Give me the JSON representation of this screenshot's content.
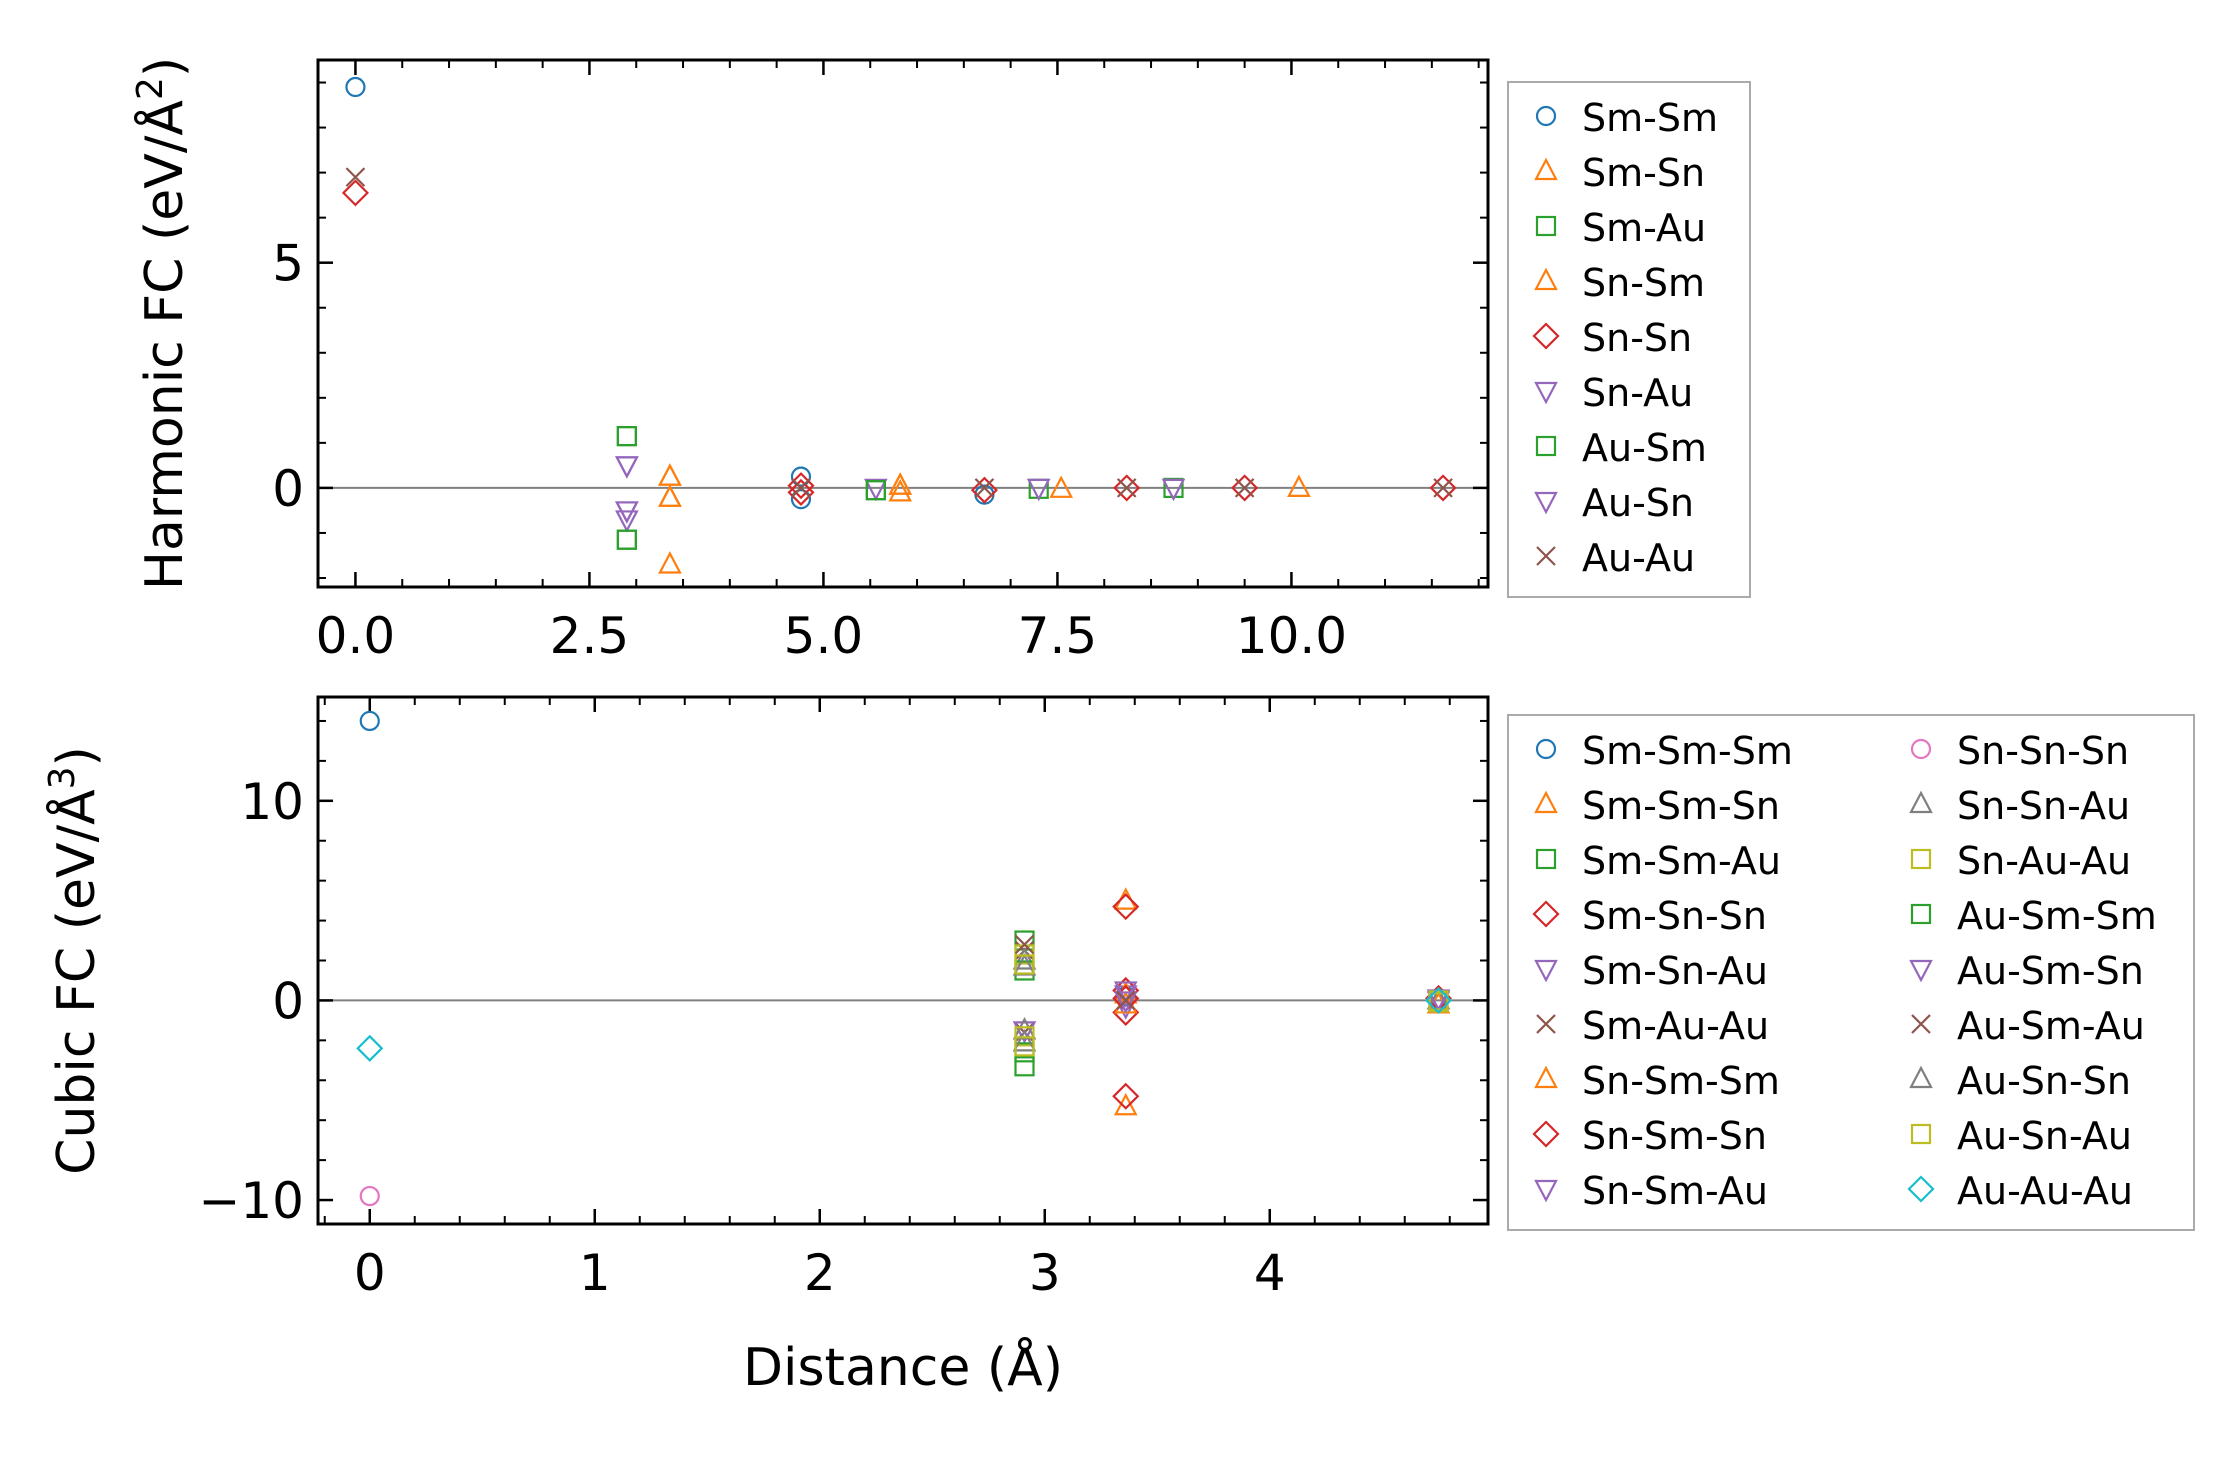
{
  "chart_data": [
    {
      "type": "scatter",
      "panel": "top",
      "xlabel": "",
      "ylabel": "Harmonic FC (eV/Å²)",
      "ylabel_main": "Harmonic FC (eV/Å",
      "ylabel_sup": "2",
      "ylabel_close": ")",
      "xlim": [
        -0.4,
        12.1
      ],
      "ylim": [
        -2.2,
        9.5
      ],
      "xticks": [
        0.0,
        2.5,
        5.0,
        7.5,
        10.0
      ],
      "xtick_labels": [
        "0.0",
        "2.5",
        "5.0",
        "7.5",
        "10.0"
      ],
      "yticks": [
        0,
        5
      ],
      "ytick_labels": [
        "0",
        "5"
      ],
      "zero_line": true,
      "legend": "right",
      "legend_columns": 1,
      "series": [
        {
          "name": "Sm-Sm",
          "marker": "circle",
          "color": "#1f77b4",
          "points": [
            [
              0.0,
              8.9
            ],
            [
              4.76,
              0.25
            ],
            [
              4.76,
              -0.25
            ],
            [
              6.72,
              -0.15
            ]
          ]
        },
        {
          "name": "Sm-Sn",
          "marker": "triangle-up",
          "color": "#ff7f0e",
          "points": [
            [
              3.36,
              0.25
            ],
            [
              3.36,
              -0.22
            ],
            [
              3.36,
              -1.7
            ],
            [
              5.82,
              0.05
            ],
            [
              5.82,
              -0.1
            ],
            [
              7.54,
              -0.02
            ],
            [
              10.08,
              0.0
            ]
          ]
        },
        {
          "name": "Sm-Au",
          "marker": "square",
          "color": "#2ca02c",
          "points": [
            [
              2.9,
              1.15
            ],
            [
              2.9,
              -1.15
            ],
            [
              5.56,
              -0.05
            ],
            [
              7.3,
              -0.02
            ],
            [
              8.74,
              0.0
            ]
          ]
        },
        {
          "name": "Sn-Sm",
          "marker": "triangle-up",
          "color": "#ff7f0e",
          "points": [
            [
              3.36,
              0.25
            ],
            [
              3.36,
              -0.22
            ],
            [
              5.82,
              0.05
            ]
          ]
        },
        {
          "name": "Sn-Sn",
          "marker": "diamond",
          "color": "#d62728",
          "points": [
            [
              0.0,
              6.55
            ],
            [
              4.76,
              0.05
            ],
            [
              4.76,
              -0.1
            ],
            [
              6.72,
              -0.05
            ],
            [
              8.24,
              0.0
            ],
            [
              9.5,
              0.0
            ],
            [
              11.62,
              0.0
            ]
          ]
        },
        {
          "name": "Sn-Au",
          "marker": "triangle-down",
          "color": "#9467bd",
          "points": [
            [
              2.9,
              0.5
            ],
            [
              2.9,
              -0.5
            ],
            [
              2.9,
              -0.7
            ],
            [
              5.56,
              0.0
            ],
            [
              7.3,
              0.0
            ],
            [
              8.74,
              0.0
            ]
          ]
        },
        {
          "name": "Au-Sm",
          "marker": "square",
          "color": "#2ca02c",
          "points": [
            [
              2.9,
              1.15
            ],
            [
              2.9,
              -1.15
            ],
            [
              5.56,
              -0.05
            ]
          ]
        },
        {
          "name": "Au-Sn",
          "marker": "triangle-down",
          "color": "#9467bd",
          "points": [
            [
              2.9,
              0.5
            ],
            [
              2.9,
              -0.5
            ]
          ]
        },
        {
          "name": "Au-Au",
          "marker": "x",
          "color": "#8c564b",
          "points": [
            [
              0.0,
              6.9
            ],
            [
              4.76,
              0.0
            ],
            [
              6.72,
              0.0
            ],
            [
              8.24,
              0.0
            ],
            [
              9.5,
              0.0
            ],
            [
              11.62,
              0.0
            ]
          ]
        }
      ]
    },
    {
      "type": "scatter",
      "panel": "bottom",
      "xlabel": "Distance (Å)",
      "ylabel": "Cubic FC (eV/Å³)",
      "ylabel_main": "Cubic FC (eV/Å",
      "ylabel_sup": "3",
      "ylabel_close": ")",
      "xlim": [
        -0.23,
        4.97
      ],
      "ylim": [
        -11.2,
        15.2
      ],
      "xticks": [
        0,
        1,
        2,
        3,
        4
      ],
      "xtick_labels": [
        "0",
        "1",
        "2",
        "3",
        "4"
      ],
      "yticks": [
        -10,
        0,
        10
      ],
      "ytick_labels": [
        "−10",
        "0",
        "10"
      ],
      "zero_line": true,
      "legend": "right",
      "legend_columns": 2,
      "series": [
        {
          "name": "Sm-Sm-Sm",
          "marker": "circle",
          "color": "#1f77b4",
          "points": [
            [
              0.0,
              14.0
            ],
            [
              3.36,
              0.2
            ]
          ]
        },
        {
          "name": "Sm-Sm-Sn",
          "marker": "triangle-up",
          "color": "#ff7f0e",
          "points": [
            [
              3.36,
              5.0
            ],
            [
              3.36,
              -5.3
            ],
            [
              4.75,
              -0.2
            ]
          ]
        },
        {
          "name": "Sm-Sm-Au",
          "marker": "square",
          "color": "#2ca02c",
          "points": [
            [
              2.91,
              3.0
            ],
            [
              2.91,
              -3.3
            ]
          ]
        },
        {
          "name": "Sm-Sn-Sn",
          "marker": "diamond",
          "color": "#d62728",
          "points": [
            [
              3.36,
              4.7
            ],
            [
              3.36,
              -4.8
            ],
            [
              3.36,
              0.5
            ],
            [
              3.36,
              -0.6
            ]
          ]
        },
        {
          "name": "Sm-Sn-Au",
          "marker": "triangle-down",
          "color": "#9467bd",
          "points": [
            [
              3.36,
              0.3
            ],
            [
              3.36,
              -0.3
            ],
            [
              4.75,
              0.0
            ]
          ]
        },
        {
          "name": "Sm-Au-Au",
          "marker": "x",
          "color": "#8c564b",
          "points": [
            [
              2.91,
              2.5
            ],
            [
              2.91,
              -1.6
            ],
            [
              3.36,
              0.0
            ]
          ]
        },
        {
          "name": "Sn-Sm-Sm",
          "marker": "triangle-up",
          "color": "#ff7f0e",
          "points": [
            [
              3.36,
              0.3
            ],
            [
              3.36,
              -0.2
            ]
          ]
        },
        {
          "name": "Sn-Sm-Sn",
          "marker": "diamond",
          "color": "#d62728",
          "points": [
            [
              3.36,
              0.1
            ],
            [
              4.75,
              0.1
            ]
          ]
        },
        {
          "name": "Sn-Sm-Au",
          "marker": "triangle-down",
          "color": "#9467bd",
          "points": [
            [
              3.36,
              0.5
            ],
            [
              2.91,
              -1.5
            ]
          ]
        },
        {
          "name": "Sn-Sn-Sn",
          "marker": "circle",
          "color": "#e377c2",
          "points": [
            [
              0.0,
              -9.8
            ]
          ]
        },
        {
          "name": "Sn-Sn-Au",
          "marker": "triangle-up",
          "color": "#7f7f7f",
          "points": [
            [
              2.91,
              2.0
            ],
            [
              2.91,
              -1.5
            ],
            [
              4.75,
              0.0
            ]
          ]
        },
        {
          "name": "Sn-Au-Au",
          "marker": "square",
          "color": "#bcbd22",
          "points": [
            [
              2.91,
              2.3
            ],
            [
              2.91,
              -1.8
            ],
            [
              4.75,
              -0.1
            ]
          ]
        },
        {
          "name": "Au-Sm-Sm",
          "marker": "square",
          "color": "#2ca02c",
          "points": [
            [
              2.91,
              1.5
            ],
            [
              2.91,
              -2.6
            ]
          ]
        },
        {
          "name": "Au-Sm-Sn",
          "marker": "triangle-down",
          "color": "#9467bd",
          "points": [
            [
              3.36,
              0.0
            ],
            [
              4.75,
              0.1
            ]
          ]
        },
        {
          "name": "Au-Sm-Au",
          "marker": "x",
          "color": "#8c564b",
          "points": [
            [
              2.91,
              2.8
            ],
            [
              3.36,
              0.0
            ]
          ]
        },
        {
          "name": "Au-Sn-Sn",
          "marker": "triangle-up",
          "color": "#7f7f7f",
          "points": [
            [
              2.91,
              1.7
            ],
            [
              2.91,
              -2.1
            ]
          ]
        },
        {
          "name": "Au-Sn-Au",
          "marker": "square",
          "color": "#bcbd22",
          "points": [
            [
              2.91,
              1.8
            ],
            [
              2.91,
              -2.3
            ],
            [
              4.75,
              0.0
            ]
          ]
        },
        {
          "name": "Au-Au-Au",
          "marker": "diamond",
          "color": "#17becf",
          "points": [
            [
              0.0,
              -2.4
            ],
            [
              4.75,
              0.0
            ]
          ]
        }
      ]
    }
  ]
}
